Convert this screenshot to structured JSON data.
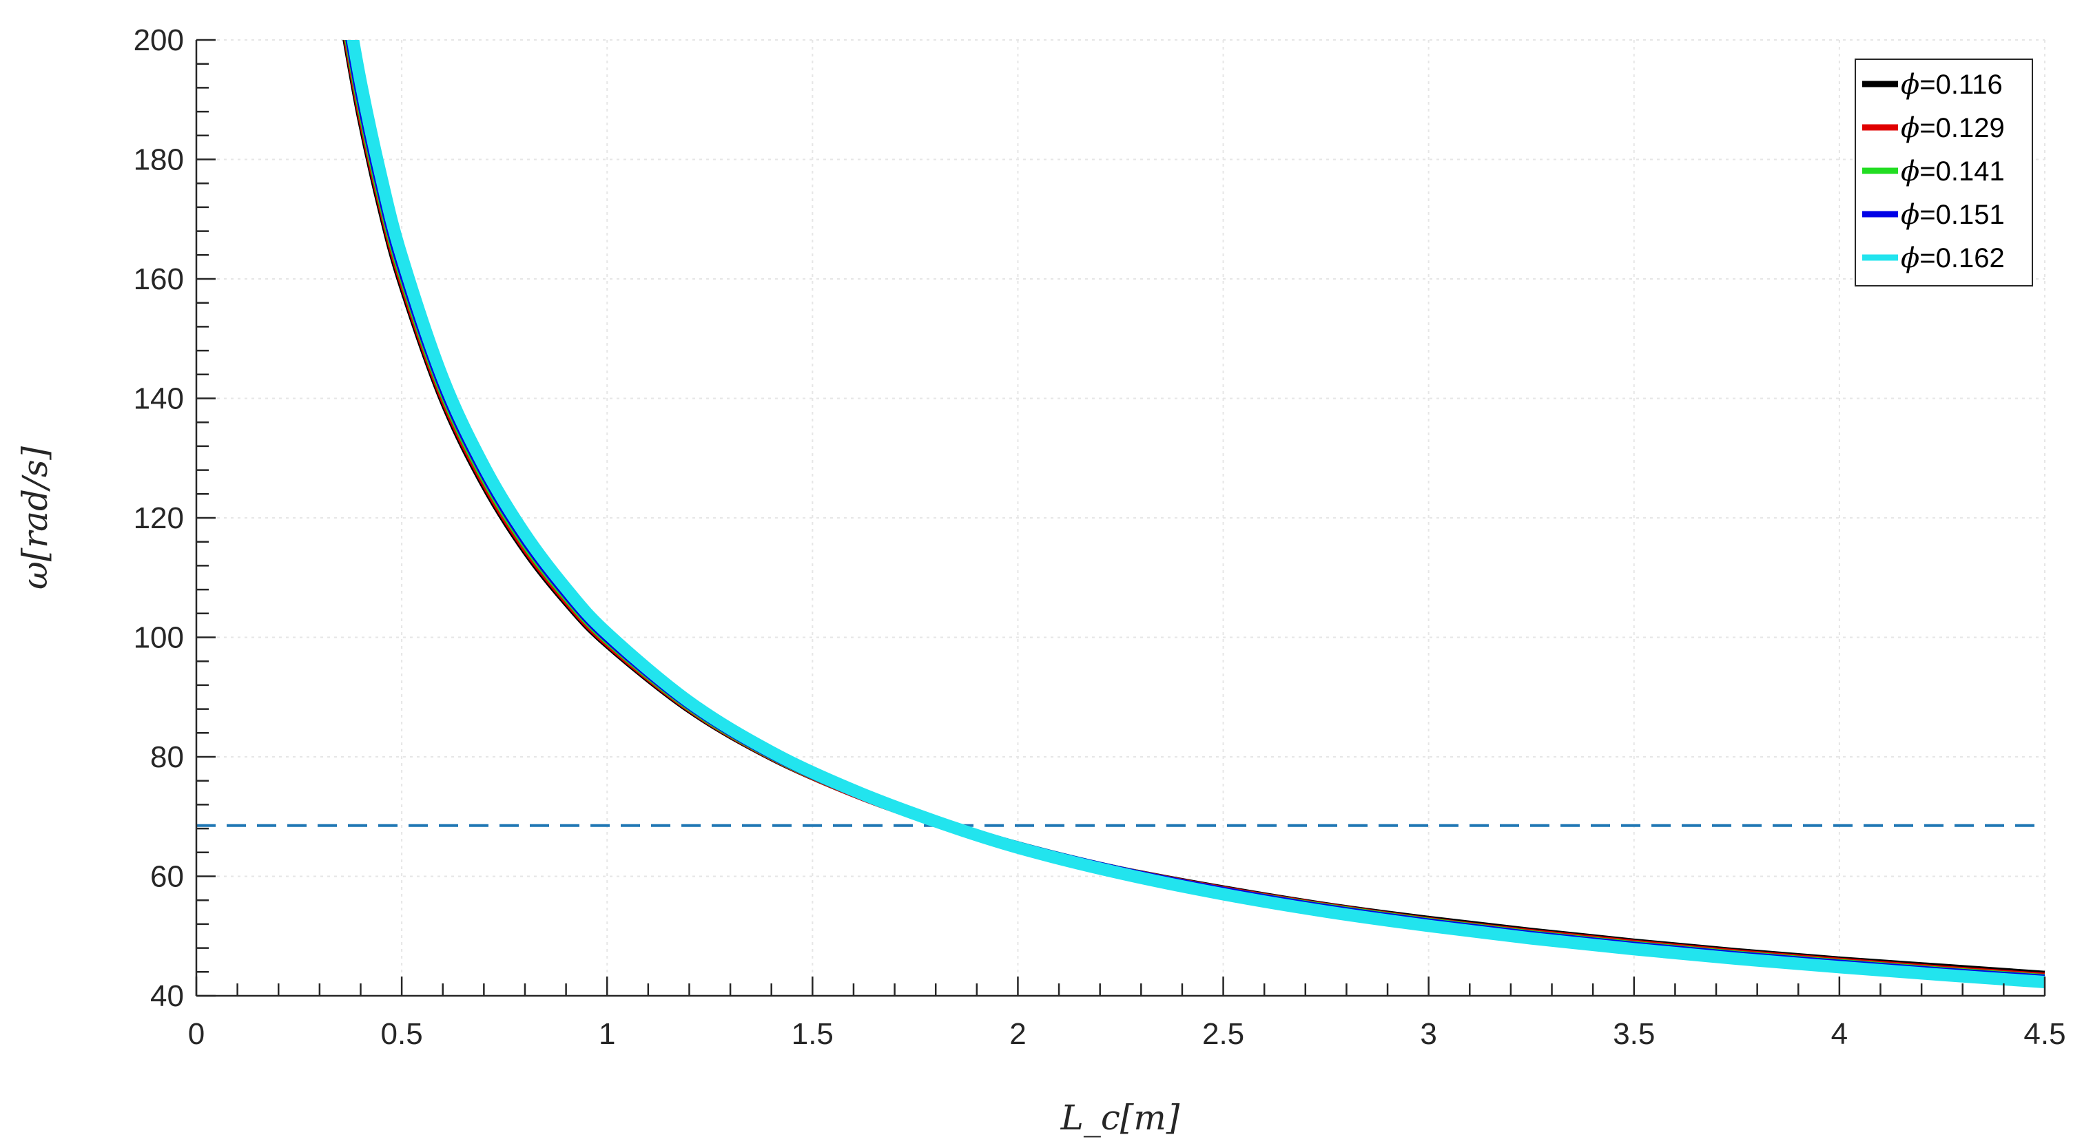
{
  "chart_data": {
    "type": "line",
    "xlabel": "L_c[m]",
    "ylabel": "ω[rad/s]",
    "xlim": [
      0,
      4.5
    ],
    "ylim": [
      40,
      200
    ],
    "x_ticks": [
      "0",
      "0.5",
      "1",
      "1.5",
      "2",
      "2.5",
      "3",
      "3.5",
      "4",
      "4.5"
    ],
    "y_ticks": [
      "40",
      "60",
      "80",
      "100",
      "120",
      "140",
      "160",
      "180",
      "200"
    ],
    "grid": true,
    "legend_position": "top-right",
    "reference_line": {
      "y": 68.5,
      "style": "dashed",
      "color": "#1f77b4"
    },
    "x": [
      0.36,
      0.4,
      0.45,
      0.5,
      0.6,
      0.7,
      0.8,
      0.9,
      1.0,
      1.2,
      1.4,
      1.6,
      1.8,
      2.0,
      2.25,
      2.5,
      2.75,
      3.0,
      3.25,
      3.5,
      3.75,
      4.0,
      4.25,
      4.5
    ],
    "series": [
      {
        "name": "ϕ=0.116",
        "color": "#000000",
        "values": [
          202.4,
          187.3,
          172.0,
          159.4,
          139.9,
          125.7,
          114.7,
          106.0,
          98.9,
          88.0,
          80.0,
          73.9,
          69.0,
          65.0,
          61.0,
          57.8,
          55.0,
          52.7,
          50.7,
          48.9,
          47.3,
          45.9,
          44.7,
          43.5
        ]
      },
      {
        "name": "ϕ=0.129",
        "color": "#e00000",
        "values": [
          203.9,
          188.6,
          173.2,
          160.4,
          140.7,
          126.4,
          115.3,
          106.5,
          99.3,
          88.3,
          80.2,
          74.0,
          69.1,
          65.0,
          60.9,
          57.6,
          54.8,
          52.4,
          50.4,
          48.6,
          47.0,
          45.6,
          44.3,
          43.1
        ]
      },
      {
        "name": "ϕ=0.141",
        "color": "#22dd22",
        "values": [
          205.3,
          190.0,
          174.4,
          161.5,
          141.6,
          127.2,
          116.0,
          107.1,
          99.8,
          88.6,
          80.4,
          74.2,
          69.2,
          65.0,
          60.8,
          57.4,
          54.6,
          52.2,
          50.1,
          48.3,
          46.7,
          45.3,
          44.0,
          42.8
        ]
      },
      {
        "name": "ϕ=0.151",
        "color": "#0000e6",
        "values": [
          206.7,
          191.3,
          175.6,
          162.5,
          142.4,
          127.9,
          116.6,
          107.6,
          100.2,
          88.9,
          80.6,
          74.3,
          69.2,
          64.9,
          60.7,
          57.3,
          54.4,
          52.0,
          49.9,
          48.1,
          46.5,
          45.1,
          43.8,
          42.6
        ]
      },
      {
        "name": "ϕ=0.162",
        "color": "#22e4ee",
        "values": [
          208.6,
          193.0,
          177.1,
          163.8,
          143.4,
          128.7,
          117.3,
          108.2,
          100.7,
          89.2,
          80.8,
          74.4,
          69.2,
          64.8,
          60.5,
          57.0,
          54.1,
          51.7,
          49.6,
          47.8,
          46.2,
          44.8,
          43.5,
          42.3
        ]
      }
    ]
  }
}
